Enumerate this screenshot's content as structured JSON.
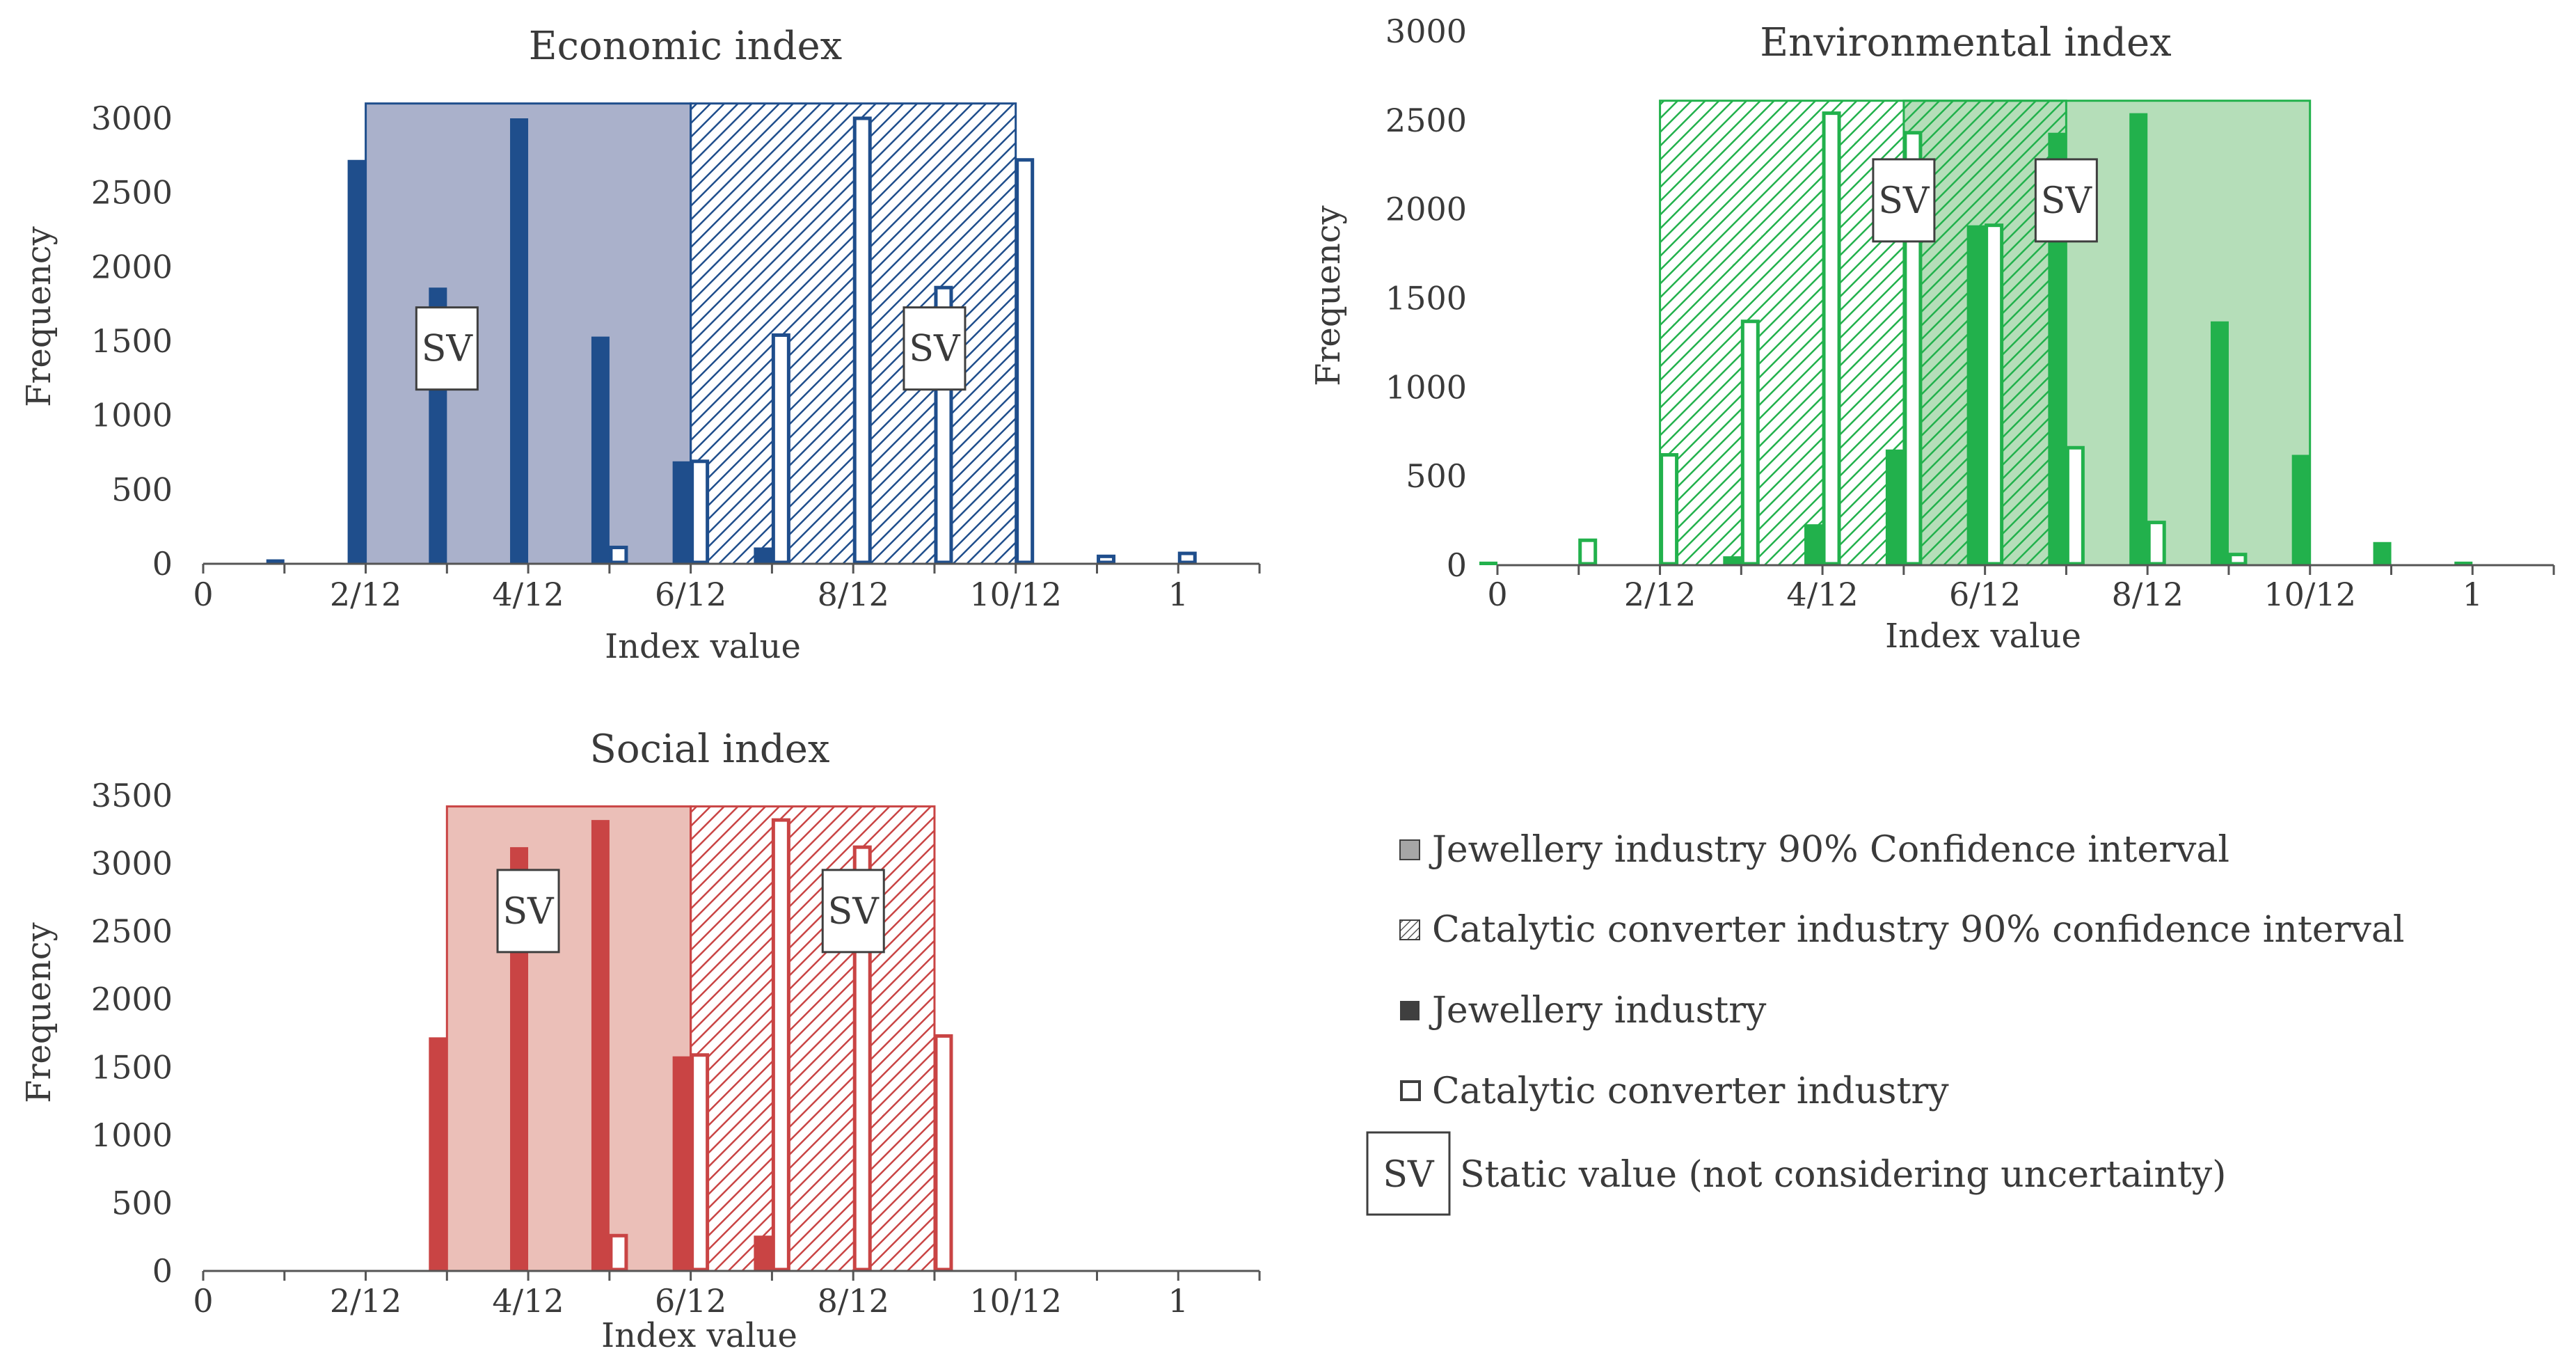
{
  "chart_data": [
    {
      "type": "bar",
      "title": "Economic index",
      "xlabel": "Index value",
      "ylabel": "Frequency",
      "xlim": [
        0,
        1.0833
      ],
      "ylim": [
        0,
        3000
      ],
      "yticks": [
        0,
        500,
        1000,
        1500,
        2000,
        2500,
        3000
      ],
      "xticks": [
        {
          "v": 0,
          "label": "0"
        },
        {
          "v": 0.1667,
          "label": "2/12"
        },
        {
          "v": 0.3333,
          "label": "4/12"
        },
        {
          "v": 0.5,
          "label": "6/12"
        },
        {
          "v": 0.6667,
          "label": "8/12"
        },
        {
          "v": 0.8333,
          "label": "10/12"
        },
        {
          "v": 1,
          "label": "1"
        }
      ],
      "color": "#1f4e8c",
      "ci_fill": "#9ba3c2",
      "jewellery_ci": [
        0.1667,
        0.5,
        3100
      ],
      "catalytic_ci": [
        0.5,
        0.8333,
        3100
      ],
      "sv_label": "SV",
      "sv_positions": [
        [
          0.25,
          1450
        ],
        [
          0.75,
          1450
        ]
      ],
      "series": [
        {
          "name": "Jewellery industry",
          "x": [
            0.0833,
            0.1667,
            0.25,
            0.3333,
            0.4167,
            0.5,
            0.5833
          ],
          "values": [
            30,
            2720,
            1860,
            3000,
            1530,
            690,
            110
          ]
        },
        {
          "name": "Catalytic converter industry",
          "x": [
            0.4167,
            0.5,
            0.5833,
            0.6667,
            0.75,
            0.8333,
            0.9167,
            1.0
          ],
          "values": [
            110,
            690,
            1540,
            3000,
            1860,
            2720,
            50,
            70
          ]
        }
      ]
    },
    {
      "type": "bar",
      "title": "Environmental index",
      "xlabel": "Index value",
      "ylabel": "Frequency",
      "xlim": [
        0,
        1.0833
      ],
      "ylim": [
        0,
        3000
      ],
      "yticks": [
        0,
        500,
        1000,
        1500,
        2000,
        2500,
        3000
      ],
      "xticks": [
        {
          "v": 0,
          "label": "0"
        },
        {
          "v": 0.1667,
          "label": "2/12"
        },
        {
          "v": 0.3333,
          "label": "4/12"
        },
        {
          "v": 0.5,
          "label": "6/12"
        },
        {
          "v": 0.6667,
          "label": "8/12"
        },
        {
          "v": 0.8333,
          "label": "10/12"
        },
        {
          "v": 1,
          "label": "1"
        }
      ],
      "color": "#22b14c",
      "ci_fill": "#a8d8ad",
      "jewellery_ci": [
        0.4167,
        0.8333,
        2610
      ],
      "catalytic_ci": [
        0.1667,
        0.5833,
        2610
      ],
      "sv_label": "SV",
      "sv_positions": [
        [
          0.4167,
          2050
        ],
        [
          0.5833,
          2050
        ]
      ],
      "series": [
        {
          "name": "Jewellery industry",
          "x": [
            0.0,
            0.25,
            0.3333,
            0.4167,
            0.5,
            0.5833,
            0.6667,
            0.75,
            0.8333,
            0.9167,
            1.0
          ],
          "values": [
            20,
            50,
            230,
            650,
            1910,
            2430,
            2540,
            1370,
            620,
            130,
            20
          ]
        },
        {
          "name": "Catalytic converter industry",
          "x": [
            0.0833,
            0.1667,
            0.25,
            0.3333,
            0.4167,
            0.5,
            0.5833,
            0.6667,
            0.75
          ],
          "values": [
            140,
            620,
            1370,
            2540,
            2430,
            1910,
            660,
            240,
            60
          ]
        }
      ]
    },
    {
      "type": "bar",
      "title": "Social index",
      "xlabel": "Index value",
      "ylabel": "Frequency",
      "xlim": [
        0,
        1.0833
      ],
      "ylim": [
        0,
        3500
      ],
      "yticks": [
        0,
        500,
        1000,
        1500,
        2000,
        2500,
        3000,
        3500
      ],
      "xticks": [
        {
          "v": 0,
          "label": "0"
        },
        {
          "v": 0.1667,
          "label": "2/12"
        },
        {
          "v": 0.3333,
          "label": "4/12"
        },
        {
          "v": 0.5,
          "label": "6/12"
        },
        {
          "v": 0.6667,
          "label": "8/12"
        },
        {
          "v": 0.8333,
          "label": "10/12"
        },
        {
          "v": 1,
          "label": "1"
        }
      ],
      "color": "#c94444",
      "ci_fill": "#e8b4ab",
      "jewellery_ci": [
        0.25,
        0.5,
        3420
      ],
      "catalytic_ci": [
        0.5,
        0.75,
        3420
      ],
      "sv_label": "SV",
      "sv_positions": [
        [
          0.3333,
          2650
        ],
        [
          0.6667,
          2650
        ]
      ],
      "series": [
        {
          "name": "Jewellery industry",
          "x": [
            0.25,
            0.3333,
            0.4167,
            0.5,
            0.5833
          ],
          "values": [
            1720,
            3120,
            3320,
            1580,
            260
          ]
        },
        {
          "name": "Catalytic converter industry",
          "x": [
            0.4167,
            0.5,
            0.5833,
            0.6667,
            0.75
          ],
          "values": [
            260,
            1590,
            3320,
            3120,
            1730
          ]
        }
      ]
    }
  ],
  "legend": {
    "items": [
      {
        "label": "Jewellery industry 90% Confidence interval",
        "swatch": "ci-solid"
      },
      {
        "label": "Catalytic converter industry 90% confidence interval",
        "swatch": "ci-hatched"
      },
      {
        "label": "Jewellery industry",
        "swatch": "filled-bar"
      },
      {
        "label": "Catalytic converter industry",
        "swatch": "hollow-bar"
      }
    ],
    "sv_label": "SV",
    "sv_description": "Static value (not considering uncertainty)",
    "swatch_fill": "#a6a6a6",
    "swatch_dark": "#3f3f3f"
  }
}
